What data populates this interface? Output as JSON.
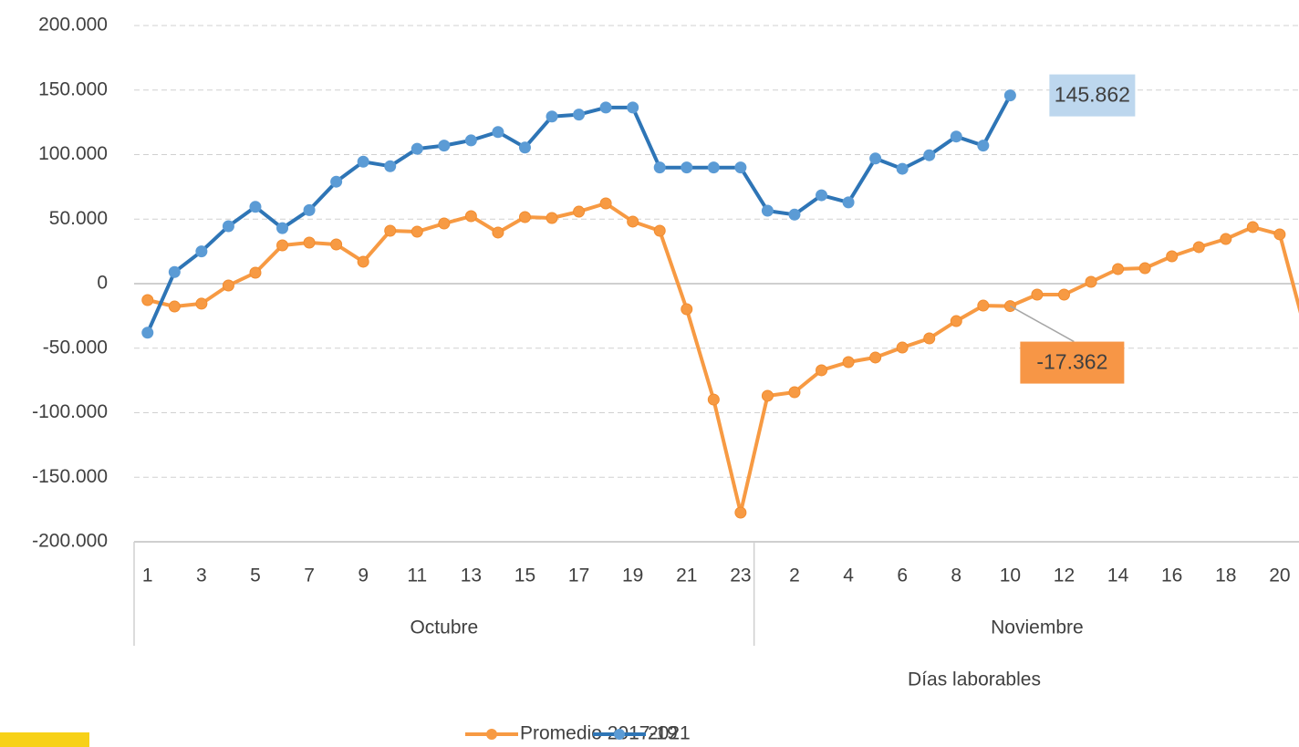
{
  "chart_data": {
    "type": "line",
    "x_label": "Días laborables",
    "categories": [
      "1",
      null,
      "3",
      null,
      "5",
      null,
      "7",
      null,
      "9",
      null,
      "11",
      null,
      "13",
      null,
      "15",
      null,
      "17",
      null,
      "19",
      null,
      "21",
      null,
      "23",
      null,
      "2",
      null,
      "4",
      null,
      "6",
      null,
      "8",
      null,
      "10",
      null,
      "12",
      null,
      "14",
      null,
      "16",
      null,
      "18",
      null,
      "20",
      null
    ],
    "groups": [
      {
        "label": "Octubre",
        "count": 23
      },
      {
        "label": "Noviembre",
        "count": 21
      }
    ],
    "series": [
      {
        "name": "Promedio 2017-19",
        "color": "#f79a43",
        "values": [
          -12700,
          -17700,
          -15500,
          -1400,
          8500,
          29700,
          31800,
          30400,
          17000,
          41000,
          40300,
          46600,
          52300,
          39600,
          51600,
          50900,
          55800,
          62200,
          48100,
          41000,
          -19800,
          -89800,
          -177400,
          -86900,
          -84100,
          -67100,
          -60800,
          -57200,
          -49500,
          -42400,
          -29000,
          -17000,
          -17362,
          -8500,
          -8500,
          1400,
          11300,
          12000,
          21200,
          28300,
          34600,
          43800,
          38200,
          -40000
        ],
        "value_labels": [
          null,
          null,
          null,
          null,
          null,
          null,
          null,
          null,
          null,
          null,
          null,
          null,
          null,
          null,
          null,
          null,
          null,
          null,
          null,
          null,
          null,
          null,
          null,
          null,
          null,
          null,
          null,
          null,
          null,
          null,
          null,
          null,
          "-17.362",
          null,
          null,
          null,
          null,
          null,
          null,
          null,
          null,
          null,
          null,
          null
        ]
      },
      {
        "name": "2021",
        "color": "#2e75b6",
        "values": [
          -38000,
          9000,
          25000,
          44500,
          59500,
          43000,
          57000,
          79000,
          94500,
          91000,
          104500,
          107000,
          111000,
          117500,
          105500,
          129500,
          131000,
          136500,
          136500,
          90000,
          90000,
          90000,
          90000,
          56500,
          53500,
          68500,
          63000,
          97000,
          89000,
          99500,
          114000,
          107000,
          145862,
          null,
          null,
          null,
          null,
          null,
          null,
          null,
          null,
          null,
          null,
          null
        ],
        "value_labels": [
          null,
          null,
          null,
          null,
          null,
          null,
          null,
          null,
          null,
          null,
          null,
          null,
          null,
          null,
          null,
          null,
          null,
          null,
          null,
          null,
          null,
          null,
          null,
          null,
          null,
          null,
          null,
          null,
          null,
          null,
          null,
          null,
          "145.862",
          null,
          null,
          null,
          null,
          null,
          null,
          null,
          null,
          null,
          null,
          null
        ]
      }
    ],
    "ylim": [
      -200000,
      200000
    ],
    "yticks": [
      {
        "value": -200000,
        "label": "-200.000"
      },
      {
        "value": -150000,
        "label": "-150.000"
      },
      {
        "value": -100000,
        "label": "-100.000"
      },
      {
        "value": -50000,
        "label": "-50.000"
      },
      0,
      {
        "value": 50000,
        "label": "50.000"
      },
      {
        "value": 100000,
        "label": "100.000"
      },
      {
        "value": 150000,
        "label": "150.000"
      },
      {
        "value": 200000,
        "label": "200.000"
      }
    ],
    "grid": true,
    "legend": "bottom"
  }
}
